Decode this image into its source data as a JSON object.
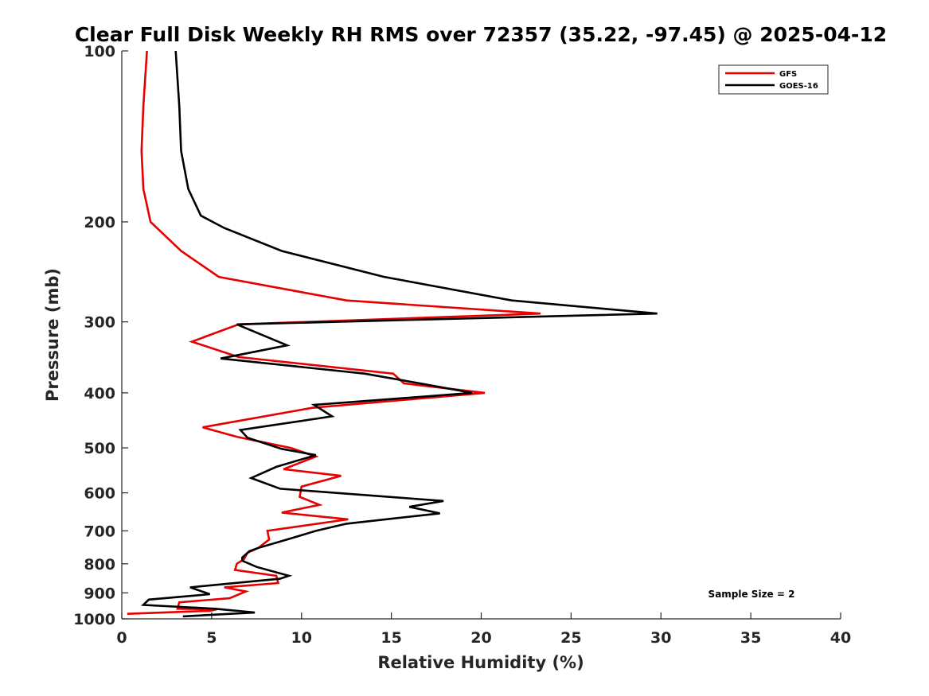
{
  "chart_data": {
    "type": "line",
    "title": "Clear Full Disk Weekly RH RMS over 72357 (35.22, -97.45) @ 2025-04-12",
    "xlabel": "Relative Humidity (%)",
    "ylabel": "Pressure (mb)",
    "xlim": [
      0,
      40
    ],
    "ylim": [
      100,
      1000
    ],
    "yscale": "log",
    "yreversed": true,
    "xticks": [
      0,
      5,
      10,
      15,
      20,
      25,
      30,
      35,
      40
    ],
    "xtick_labels": [
      "0",
      "5",
      "10",
      "15",
      "20",
      "25",
      "30",
      "35",
      "40"
    ],
    "yticks": [
      100,
      200,
      300,
      400,
      500,
      600,
      700,
      800,
      900,
      1000
    ],
    "ytick_labels": [
      "100",
      "200",
      "300",
      "400",
      "500",
      "600",
      "700",
      "800",
      "900",
      "1000"
    ],
    "grid": false,
    "legend_position": "top-right",
    "annotation": "Sample Size = 2",
    "series": [
      {
        "name": "GFS",
        "color": "#e60000",
        "points": [
          [
            1.4,
            100
          ],
          [
            1.2,
            125
          ],
          [
            1.1,
            150
          ],
          [
            1.2,
            175
          ],
          [
            1.6,
            200
          ],
          [
            3.3,
            225
          ],
          [
            5.4,
            250
          ],
          [
            12.5,
            275
          ],
          [
            23.3,
            290
          ],
          [
            6.5,
            303
          ],
          [
            3.9,
            325
          ],
          [
            6.5,
            346
          ],
          [
            15.1,
            370
          ],
          [
            15.7,
            385
          ],
          [
            20.2,
            400
          ],
          [
            10.6,
            425
          ],
          [
            4.5,
            460
          ],
          [
            6.4,
            478
          ],
          [
            9.4,
            500
          ],
          [
            10.8,
            518
          ],
          [
            9.0,
            545
          ],
          [
            12.2,
            560
          ],
          [
            10.0,
            585
          ],
          [
            9.9,
            610
          ],
          [
            11.0,
            630
          ],
          [
            8.9,
            650
          ],
          [
            12.6,
            668
          ],
          [
            8.1,
            700
          ],
          [
            8.2,
            725
          ],
          [
            7.6,
            750
          ],
          [
            7.0,
            765
          ],
          [
            6.8,
            785
          ],
          [
            6.4,
            800
          ],
          [
            6.3,
            820
          ],
          [
            8.6,
            840
          ],
          [
            8.7,
            865
          ],
          [
            5.7,
            880
          ],
          [
            6.9,
            895
          ],
          [
            6.0,
            920
          ],
          [
            3.2,
            935
          ],
          [
            3.1,
            960
          ],
          [
            5.3,
            962
          ],
          [
            4.9,
            968
          ],
          [
            0.3,
            980
          ]
        ]
      },
      {
        "name": "GOES-16",
        "color": "#000000",
        "points": [
          [
            3.0,
            100
          ],
          [
            3.2,
            125
          ],
          [
            3.3,
            150
          ],
          [
            3.7,
            175
          ],
          [
            4.4,
            195
          ],
          [
            5.7,
            205
          ],
          [
            8.9,
            225
          ],
          [
            14.6,
            250
          ],
          [
            21.7,
            275
          ],
          [
            29.8,
            290
          ],
          [
            6.4,
            303
          ],
          [
            9.2,
            330
          ],
          [
            5.5,
            348
          ],
          [
            13.5,
            370
          ],
          [
            16.6,
            385
          ],
          [
            19.5,
            400
          ],
          [
            10.7,
            420
          ],
          [
            11.7,
            440
          ],
          [
            6.6,
            465
          ],
          [
            7.0,
            480
          ],
          [
            8.9,
            502
          ],
          [
            10.8,
            515
          ],
          [
            8.6,
            540
          ],
          [
            7.2,
            565
          ],
          [
            8.8,
            590
          ],
          [
            17.9,
            620
          ],
          [
            16.0,
            635
          ],
          [
            17.7,
            652
          ],
          [
            12.5,
            680
          ],
          [
            10.8,
            700
          ],
          [
            9.2,
            725
          ],
          [
            7.6,
            750
          ],
          [
            7.1,
            760
          ],
          [
            6.7,
            780
          ],
          [
            6.7,
            790
          ],
          [
            7.5,
            810
          ],
          [
            9.3,
            840
          ],
          [
            8.8,
            850
          ],
          [
            3.8,
            880
          ],
          [
            4.9,
            905
          ],
          [
            1.5,
            925
          ],
          [
            1.2,
            945
          ],
          [
            5.2,
            960
          ],
          [
            7.4,
            975
          ],
          [
            3.4,
            990
          ]
        ]
      }
    ]
  }
}
